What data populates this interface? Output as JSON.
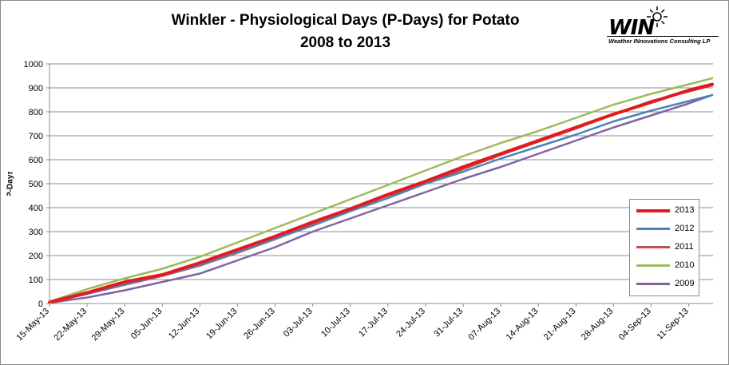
{
  "title": {
    "line1": "Winkler - Physiological Days (P-Days) for Potato",
    "line2": "2008 to 2013"
  },
  "logo": {
    "word": "WIN",
    "subtitle": "Weather INnovations Consulting LP",
    "icon": "sun-icon"
  },
  "chart_data": {
    "type": "line",
    "title": "Winkler - Physiological Days (P-Days) for Potato 2008 to 2013",
    "ylabel": "P-Days",
    "xlabel": "",
    "ylim": [
      0,
      1000
    ],
    "yticks": [
      0,
      100,
      200,
      300,
      400,
      500,
      600,
      700,
      800,
      900,
      1000
    ],
    "x_tick_labels": [
      "15-May-13",
      "22-May-13",
      "29-May-13",
      "05-Jun-13",
      "12-Jun-13",
      "19-Jun-13",
      "26-Jun-13",
      "03-Jul-13",
      "10-Jul-13",
      "17-Jul-13",
      "24-Jul-13",
      "31-Jul-13",
      "07-Aug-13",
      "14-Aug-13",
      "21-Aug-13",
      "28-Aug-13",
      "04-Sep-13",
      "11-Sep-13"
    ],
    "x": [
      "15-May-13",
      "22-May-13",
      "29-May-13",
      "05-Jun-13",
      "12-Jun-13",
      "19-Jun-13",
      "26-Jun-13",
      "03-Jul-13",
      "10-Jul-13",
      "17-Jul-13",
      "24-Jul-13",
      "31-Jul-13",
      "07-Aug-13",
      "14-Aug-13",
      "21-Aug-13",
      "28-Aug-13",
      "04-Sep-13",
      "11-Sep-13",
      "18-Sep-13"
    ],
    "grid": "horizontal",
    "legend_position": "right",
    "series": [
      {
        "name": "2013",
        "color": "#e31a1c",
        "width": 4,
        "values": [
          5,
          45,
          90,
          120,
          170,
          225,
          280,
          340,
          395,
          455,
          510,
          570,
          625,
          680,
          735,
          790,
          840,
          890,
          915
        ]
      },
      {
        "name": "2012",
        "color": "#4f81bd",
        "width": 2.5,
        "values": [
          5,
          40,
          80,
          118,
          160,
          215,
          270,
          325,
          385,
          440,
          500,
          550,
          605,
          655,
          705,
          760,
          805,
          845,
          870
        ]
      },
      {
        "name": "2011",
        "color": "#c0504d",
        "width": 2.5,
        "values": [
          5,
          40,
          78,
          115,
          158,
          212,
          268,
          330,
          390,
          450,
          500,
          560,
          620,
          675,
          730,
          790,
          845,
          885,
          910
        ]
      },
      {
        "name": "2010",
        "color": "#9bbb59",
        "width": 2.5,
        "values": [
          8,
          60,
          105,
          145,
          195,
          255,
          315,
          375,
          435,
          495,
          555,
          615,
          670,
          720,
          775,
          830,
          875,
          915,
          940
        ]
      },
      {
        "name": "2009",
        "color": "#8064a2",
        "width": 2.5,
        "values": [
          3,
          25,
          55,
          90,
          125,
          180,
          235,
          300,
          355,
          410,
          465,
          520,
          570,
          625,
          680,
          735,
          785,
          835,
          870
        ]
      }
    ]
  }
}
